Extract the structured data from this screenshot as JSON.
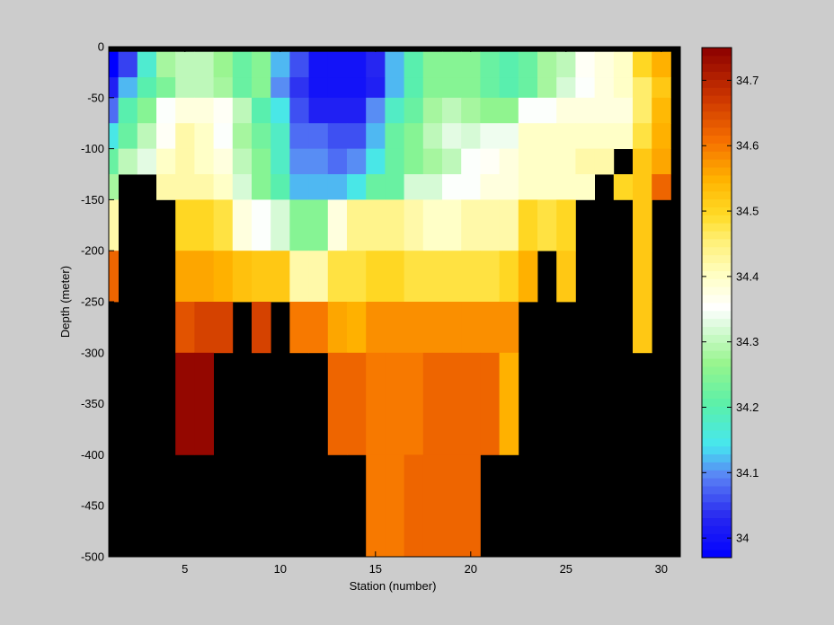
{
  "chart_data": {
    "type": "heatmap",
    "xlabel": "Station (number)",
    "ylabel": "Depth (meter)",
    "xlim": [
      1,
      31
    ],
    "ylim": [
      -500,
      0
    ],
    "xticks": [
      5,
      10,
      15,
      20,
      25,
      30
    ],
    "yticks": [
      0,
      -50,
      -100,
      -150,
      -200,
      -250,
      -300,
      -350,
      -400,
      -450,
      -500
    ],
    "ytick_labels": [
      "0",
      "-50",
      "-100",
      "-150",
      "-200",
      "-250",
      "-300",
      "-350",
      "-400",
      "-450",
      "-500"
    ],
    "stations": [
      1,
      2,
      3,
      4,
      5,
      6,
      7,
      8,
      9,
      10,
      11,
      12,
      13,
      14,
      15,
      16,
      17,
      18,
      19,
      20,
      21,
      22,
      23,
      24,
      25,
      26,
      27,
      28,
      29,
      30
    ],
    "depth_bins_top": [
      -5,
      -30,
      -50,
      -75,
      -100,
      -125,
      -150,
      -200,
      -250,
      -300,
      -400
    ],
    "depth_bins_bottom": [
      -30,
      -50,
      -75,
      -100,
      -125,
      -150,
      -200,
      -250,
      -300,
      -400,
      -500
    ],
    "salinity": [
      [
        33.97,
        34.05,
        34.17,
        34.28,
        34.3,
        34.3,
        34.27,
        34.22,
        34.25,
        34.12,
        34.06,
        34.0,
        34.0,
        34.0,
        34.03,
        34.12,
        34.2,
        34.25,
        34.25,
        34.25,
        34.22,
        34.2,
        34.22,
        34.28,
        34.3,
        34.36,
        34.38,
        34.4,
        34.5,
        34.55
      ],
      [
        34.02,
        34.12,
        34.2,
        34.24,
        34.3,
        34.3,
        34.28,
        34.22,
        34.25,
        34.1,
        34.04,
        34.0,
        34.0,
        34.0,
        34.02,
        34.12,
        34.2,
        34.25,
        34.25,
        34.25,
        34.22,
        34.2,
        34.22,
        34.28,
        34.32,
        34.35,
        34.38,
        34.4,
        34.46,
        34.52
      ],
      [
        34.08,
        34.2,
        34.25,
        34.35,
        34.38,
        34.38,
        34.36,
        34.3,
        34.2,
        34.15,
        34.06,
        34.02,
        34.02,
        34.02,
        34.1,
        34.18,
        34.22,
        34.28,
        34.3,
        34.28,
        34.26,
        34.26,
        34.35,
        34.35,
        34.38,
        34.38,
        34.38,
        34.38,
        34.46,
        34.54
      ],
      [
        34.15,
        34.22,
        34.3,
        34.36,
        34.42,
        34.4,
        34.35,
        34.28,
        34.23,
        34.18,
        34.08,
        34.08,
        34.06,
        34.06,
        34.12,
        34.22,
        34.25,
        34.3,
        34.33,
        34.32,
        34.34,
        34.34,
        34.4,
        34.4,
        34.4,
        34.4,
        34.4,
        34.4,
        34.48,
        34.55
      ],
      [
        34.22,
        34.3,
        34.33,
        34.4,
        34.42,
        34.4,
        34.38,
        34.3,
        34.25,
        34.18,
        34.1,
        34.1,
        34.08,
        34.1,
        34.15,
        34.22,
        34.25,
        34.28,
        34.3,
        34.35,
        34.36,
        34.38,
        34.4,
        34.4,
        34.4,
        34.42,
        34.42,
        null,
        34.52,
        34.56
      ],
      [
        34.28,
        null,
        null,
        34.42,
        34.42,
        34.42,
        34.4,
        34.32,
        34.25,
        34.2,
        34.12,
        34.12,
        34.12,
        34.15,
        34.22,
        34.22,
        34.32,
        34.32,
        34.35,
        34.35,
        34.38,
        34.38,
        34.4,
        34.4,
        34.4,
        34.4,
        null,
        34.5,
        34.52,
        34.62
      ],
      [
        34.42,
        null,
        null,
        null,
        34.5,
        34.5,
        34.48,
        34.38,
        34.35,
        34.32,
        34.25,
        34.25,
        34.38,
        34.44,
        34.44,
        34.44,
        34.42,
        34.4,
        34.4,
        34.42,
        34.42,
        34.42,
        34.5,
        34.48,
        34.5,
        null,
        null,
        null,
        34.52,
        null
      ],
      [
        34.62,
        null,
        null,
        null,
        34.56,
        34.56,
        34.55,
        34.53,
        34.52,
        34.52,
        34.42,
        34.42,
        34.48,
        34.48,
        34.5,
        34.5,
        34.48,
        34.48,
        34.48,
        34.48,
        34.48,
        34.5,
        34.55,
        null,
        34.52,
        null,
        null,
        null,
        34.52,
        null
      ],
      [
        null,
        null,
        null,
        null,
        34.64,
        34.66,
        34.66,
        null,
        34.66,
        null,
        34.6,
        34.6,
        34.56,
        34.55,
        34.58,
        34.58,
        34.58,
        34.58,
        34.58,
        34.58,
        34.58,
        34.58,
        null,
        null,
        null,
        null,
        null,
        null,
        34.52,
        null
      ],
      [
        null,
        null,
        null,
        null,
        34.74,
        34.74,
        null,
        null,
        null,
        null,
        null,
        null,
        34.62,
        34.62,
        34.6,
        34.6,
        34.6,
        34.62,
        34.62,
        34.62,
        34.62,
        34.55,
        null,
        null,
        null,
        null,
        null,
        null,
        null,
        null
      ],
      [
        null,
        null,
        null,
        null,
        null,
        null,
        null,
        null,
        null,
        null,
        null,
        null,
        null,
        null,
        34.6,
        34.6,
        34.62,
        34.62,
        34.62,
        34.62,
        null,
        null,
        null,
        null,
        null,
        null,
        null,
        null,
        null,
        null
      ]
    ],
    "colorbar": {
      "min": 33.97,
      "max": 34.75,
      "ticks": [
        34.0,
        34.1,
        34.2,
        34.3,
        34.4,
        34.5,
        34.6,
        34.7
      ],
      "tick_labels": [
        "34",
        "34.1",
        "34.2",
        "34.3",
        "34.4",
        "34.5",
        "34.6",
        "34.7"
      ],
      "colormap": "jet-like (blue–cyan–green–white–yellow–orange–dark red)"
    },
    "nan_color": "#000000",
    "grid": false
  },
  "colors": {
    "figure_background": "#cccccc",
    "missing_data": "#000000"
  }
}
